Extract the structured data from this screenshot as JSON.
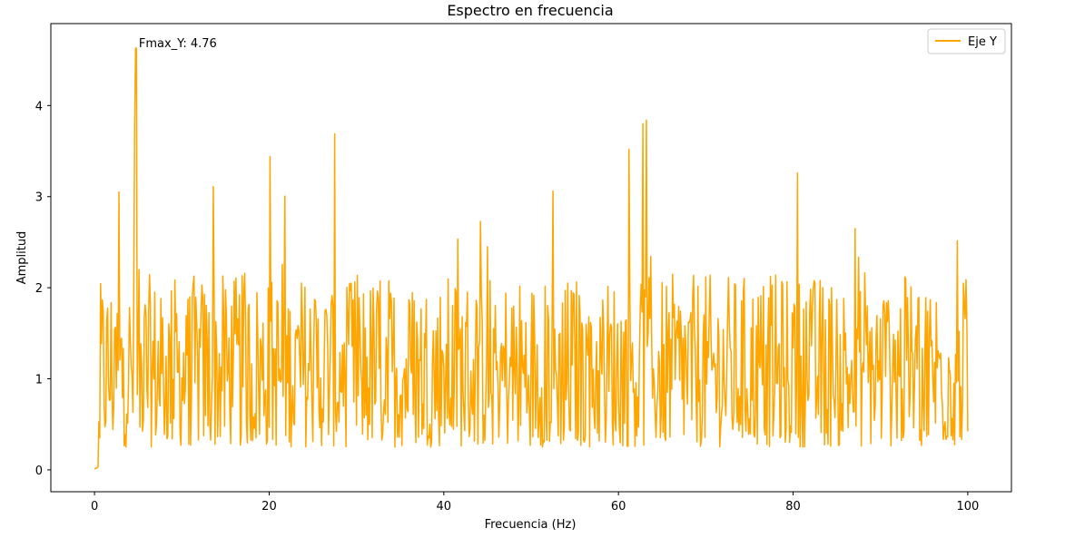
{
  "chart_data": {
    "type": "line",
    "title": "Espectro en frecuencia",
    "xlabel": "Frecuencia (Hz)",
    "ylabel": "Amplitud",
    "xlim": [
      -5,
      105
    ],
    "ylim": [
      -0.24,
      4.9
    ],
    "x_ticks": [
      0,
      20,
      40,
      60,
      80,
      100
    ],
    "y_ticks": [
      0,
      1,
      2,
      3,
      4
    ],
    "grid": false,
    "legend_position": "top-right",
    "annotation": {
      "text": "Fmax_Y: 4.76",
      "x": 4.76,
      "y": 4.76
    },
    "series": [
      {
        "name": "Eje Y",
        "color": "#ffa500",
        "x_start": 0,
        "x_end": 100,
        "values": [
          0.01,
          0.01,
          0.02,
          0.05,
          0.22,
          1.95,
          0.9,
          1.7,
          0.6,
          2.1,
          1.2,
          0.8,
          1.9,
          0.5,
          1.6,
          2.97,
          0.7,
          1.5,
          0.4,
          1.3,
          2.2,
          0.9,
          1.6,
          0.3,
          1.1,
          1.7,
          0.5,
          2.8,
          1.0,
          3.05,
          0.6,
          1.4,
          0.4,
          1.9,
          2.7,
          0.8,
          1.5,
          3.0,
          0.6,
          1.2,
          0.5,
          1.8,
          1.1,
          2.2,
          0.7,
          2.9,
          1.3,
          3.8,
          1.6,
          4.63,
          1.2,
          3.2,
          0.5,
          1.4,
          2.1,
          0.6,
          1.8,
          0.9,
          2.5,
          1.1,
          2.8,
          0.7,
          1.6,
          2.3,
          0.5,
          1.2,
          1.9,
          0.4,
          2.9,
          1.0,
          1.7,
          0.6,
          2.4,
          1.3,
          0.8,
          2.0,
          1.1,
          2.7,
          0.5,
          1.5,
          2.3,
          0.9,
          1.8,
          0.7,
          2.1,
          1.2,
          0.3,
          1.6,
          2.6,
          0.8,
          1.4,
          0.5,
          2.9,
          1.1,
          1.9,
          0.6,
          1.5,
          2.2,
          0.9,
          1.2
        ],
        "values_note": "see dense series below"
      }
    ]
  }
}
